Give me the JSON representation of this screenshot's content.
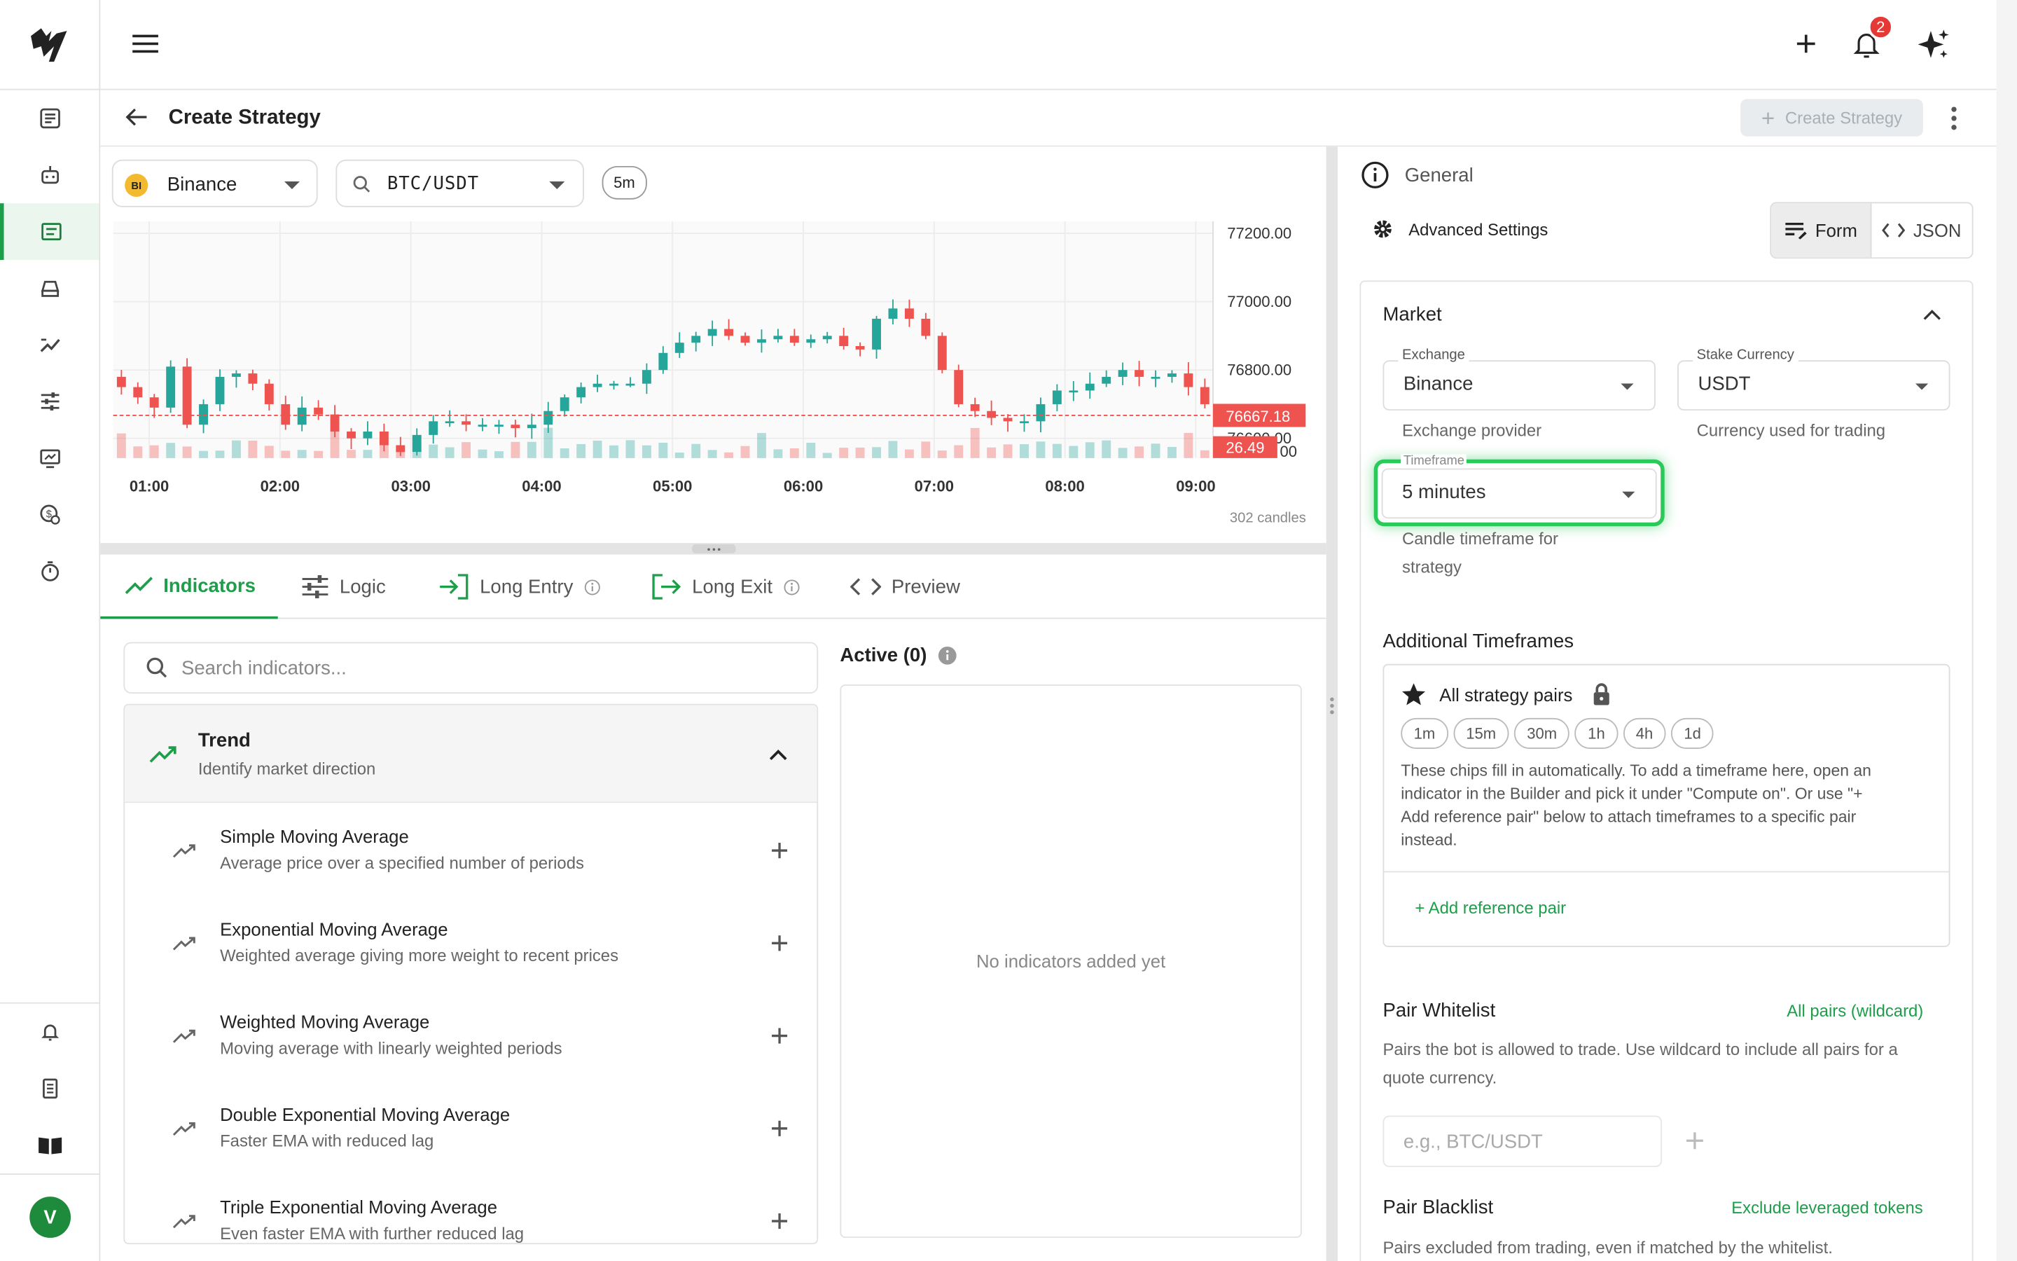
{
  "topbar": {
    "notification_count": "2"
  },
  "page": {
    "title": "Create Strategy",
    "create_button": "Create Strategy"
  },
  "chart_toolbar": {
    "exchange": "Binance",
    "exchange_badge": "BI",
    "pair": "BTC/USDT",
    "timeframe_chip": "5m",
    "candle_count": "302 candles"
  },
  "chart_data": {
    "type": "candlestick",
    "x_ticks": [
      "01:00",
      "02:00",
      "03:00",
      "04:00",
      "05:00",
      "06:00",
      "07:00",
      "08:00",
      "09:00"
    ],
    "y_ticks": [
      "77200.00",
      "77000.00",
      "76800.00",
      "76600.00"
    ],
    "ylim": [
      76580,
      77220
    ],
    "last_price": "76667.18",
    "last_volume": "26.49",
    "volume_tick": "00",
    "series": [
      {
        "name": "price",
        "close": [
          76750,
          76720,
          76690,
          76810,
          76640,
          76700,
          76780,
          76790,
          76760,
          76700,
          76640,
          76690,
          76670,
          76620,
          76600,
          76620,
          76580,
          76560,
          76610,
          76650,
          76650,
          76640,
          76640,
          76640,
          76630,
          76640,
          76680,
          76720,
          76750,
          76760,
          76760,
          76760,
          76800,
          76850,
          76880,
          76900,
          76920,
          76900,
          76880,
          76890,
          76900,
          76880,
          76890,
          76900,
          76870,
          76860,
          76950,
          76980,
          76950,
          76900,
          76800,
          76700,
          76680,
          76660,
          76650,
          76650,
          76700,
          76740,
          76740,
          76760,
          76780,
          76800,
          76780,
          76780,
          76790,
          76750,
          76700
        ]
      }
    ]
  },
  "tabs": [
    {
      "label": "Indicators"
    },
    {
      "label": "Logic"
    },
    {
      "label": "Long Entry"
    },
    {
      "label": "Long Exit"
    },
    {
      "label": "Preview"
    }
  ],
  "indicators": {
    "search_placeholder": "Search indicators...",
    "category": {
      "title": "Trend",
      "subtitle": "Identify market direction"
    },
    "items": [
      {
        "title": "Simple Moving Average",
        "desc": "Average price over a specified number of periods"
      },
      {
        "title": "Exponential Moving Average",
        "desc": "Weighted average giving more weight to recent prices"
      },
      {
        "title": "Weighted Moving Average",
        "desc": "Moving average with linearly weighted periods"
      },
      {
        "title": "Double Exponential Moving Average",
        "desc": "Faster EMA with reduced lag"
      },
      {
        "title": "Triple Exponential Moving Average",
        "desc": "Even faster EMA with further reduced lag"
      }
    ],
    "active_title": "Active (0)",
    "empty_text": "No indicators added yet"
  },
  "right": {
    "general": "General",
    "advanced": "Advanced Settings",
    "seg_form": "Form",
    "seg_json": "JSON",
    "market": {
      "title": "Market",
      "exchange_label": "Exchange",
      "exchange_value": "Binance",
      "exchange_help": "Exchange provider",
      "stake_label": "Stake Currency",
      "stake_value": "USDT",
      "stake_help": "Currency used for trading",
      "timeframe_label": "Timeframe",
      "timeframe_value": "5 minutes",
      "timeframe_help_1": "Candle timeframe for",
      "timeframe_help_2": "strategy"
    },
    "additional": {
      "title": "Additional Timeframes",
      "all_pairs": "All strategy pairs",
      "chips": [
        "1m",
        "15m",
        "30m",
        "1h",
        "4h",
        "1d"
      ],
      "note_1": "These chips fill in automatically. To add a timeframe here, open an",
      "note_2": "indicator in the Builder and pick it under \"Compute on\". Or use \"+",
      "note_3": "Add reference pair\" below to attach timeframes to a specific pair",
      "note_4": "instead.",
      "add_ref": "+ Add reference pair"
    },
    "whitelist": {
      "title": "Pair Whitelist",
      "link": "All pairs (wildcard)",
      "desc_1": "Pairs the bot is allowed to trade. Use wildcard to include all pairs for a",
      "desc_2": "quote currency.",
      "placeholder": "e.g., BTC/USDT"
    },
    "blacklist": {
      "title": "Pair Blacklist",
      "link": "Exclude leveraged tokens",
      "desc": "Pairs excluded from trading, even if matched by the whitelist."
    }
  },
  "user": {
    "avatar_initial": "V"
  },
  "colors": {
    "accent": "#1e9e4a",
    "bull": "#26a69a",
    "bear": "#ef5350"
  }
}
